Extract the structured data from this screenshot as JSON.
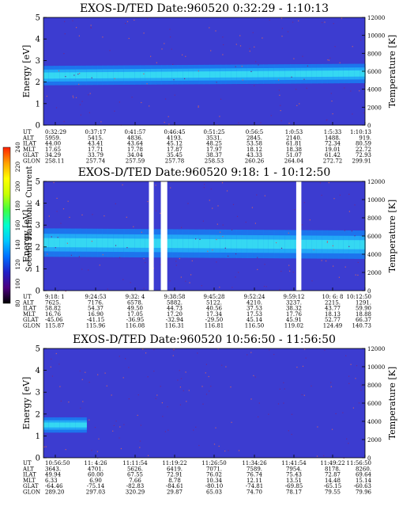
{
  "colorbar": {
    "label": "Second Harmonic Current",
    "ticks": [
      "80",
      "100",
      "120",
      "140",
      "160",
      "180",
      "200",
      "220",
      "240"
    ],
    "colors": [
      "#000000",
      "#4b0080",
      "#2020c8",
      "#0070ff",
      "#00c8ff",
      "#00ffd0",
      "#40ff40",
      "#c8ff00",
      "#ffff00",
      "#ffa000",
      "#ff2000"
    ]
  },
  "row_labels": [
    "UT",
    "ALT",
    "ILAT",
    "MLT",
    "GLAT",
    "GLON"
  ],
  "chart_data": [
    {
      "type": "heatmap",
      "title": "EXOS-D/TED  Date:960520  0:32:29 - 1:10:13",
      "ylabel": "Energy [eV]",
      "y2label": "Temperature [K]",
      "ylim": [
        0,
        5
      ],
      "y2lim": [
        0,
        12000
      ],
      "yticks": [
        "0",
        "1",
        "2",
        "3",
        "4",
        "5"
      ],
      "y2ticks": [
        "0",
        "2000",
        "4000",
        "6000",
        "8000",
        "10000",
        "12000"
      ],
      "band": {
        "center_ev": 2.3,
        "width_ev": 0.9,
        "center_end_ev": 2.4
      },
      "gaps": [],
      "table": [
        [
          "0:32:29",
          "0:37:17",
          "0:41:57",
          "0:46:45",
          "0:51:25",
          "0:56:5",
          "1:0:53",
          "1:5:33",
          "1:10:13"
        ],
        [
          "5959.",
          "5415.",
          "4836.",
          "4193.",
          "3531.",
          "2845.",
          "2140.",
          "1488.",
          "919."
        ],
        [
          "44.00",
          "43.41",
          "43.64",
          "45.12",
          "48.25",
          "53.58",
          "61.81",
          "72.34",
          "80.59"
        ],
        [
          "17.65",
          "17.71",
          "17.78",
          "17.87",
          "17.97",
          "18.12",
          "18.38",
          "19.01",
          "22.72"
        ],
        [
          "34.29",
          "33.79",
          "34.04",
          "35.45",
          "38.37",
          "43.33",
          "51.07",
          "61.42",
          "72.93"
        ],
        [
          "258.11",
          "257.74",
          "257.59",
          "257.78",
          "258.53",
          "260.26",
          "264.04",
          "272.72",
          "299.91"
        ]
      ]
    },
    {
      "type": "heatmap",
      "title": "EXOS-D/TED  Date:960520  9:18: 1 - 10:12:50",
      "ylabel": "Energy [eV]",
      "y2label": "Temperature [K]",
      "ylim": [
        0,
        5
      ],
      "y2lim": [
        0,
        12000
      ],
      "yticks": [
        "0",
        "1",
        "2",
        "3",
        "4",
        "5"
      ],
      "y2ticks": [
        "0",
        "2000",
        "4000",
        "6000",
        "8000",
        "10000",
        "12000"
      ],
      "band": {
        "center_ev": 2.2,
        "width_ev": 1.3,
        "center_end_ev": 2.1
      },
      "gaps": [
        [
          0.328,
          0.343
        ],
        [
          0.365,
          0.385
        ],
        [
          0.786,
          0.802
        ]
      ],
      "table": [
        [
          "9:18: 1",
          "9:24:53",
          "9:32: 4",
          "9:38:58",
          "9:45:28",
          "9:52:24",
          "9:59:12",
          "10: 6: 8",
          "10:12:50"
        ],
        [
          "7625.",
          "7176.",
          "6578.",
          "5882.",
          "5122.",
          "4210.",
          "3237.",
          "2215.",
          "1291."
        ],
        [
          "58.82",
          "54.37",
          "49.50",
          "44.73",
          "40.56",
          "37.53",
          "38.32",
          "43.77",
          "59.90"
        ],
        [
          "16.76",
          "16.90",
          "17.05",
          "17.20",
          "17.34",
          "17.53",
          "17.76",
          "18.13",
          "18.88"
        ],
        [
          "-45.06",
          "-41.15",
          "-36.95",
          "-32.94",
          "-29.50",
          "45.14",
          "45.91",
          "52.77",
          "66.37"
        ],
        [
          "115.87",
          "115.96",
          "116.08",
          "116.31",
          "116.81",
          "116.50",
          "119.02",
          "124.49",
          "140.73"
        ]
      ]
    },
    {
      "type": "heatmap",
      "title": "EXOS-D/TED  Date:960520  10:56:50 - 11:56:50",
      "ylabel": "Energy [eV]",
      "y2label": "Temperature [K]",
      "ylim": [
        0,
        5
      ],
      "y2lim": [
        0,
        12000
      ],
      "yticks": [
        "0",
        "1",
        "2",
        "3",
        "4",
        "5"
      ],
      "y2ticks": [
        "0",
        "2000",
        "4000",
        "6000",
        "8000",
        "10000",
        "12000"
      ],
      "band": {
        "center_ev": 1.5,
        "width_ev": 0.7,
        "fade_end_fraction": 0.12
      },
      "gaps": [],
      "table": [
        [
          "10:56:50",
          "11: 4:26",
          "11:11:54",
          "11:19:22",
          "11:26:50",
          "11:34:26",
          "11:41:54",
          "11:49:22",
          "11:56:50"
        ],
        [
          "3643.",
          "4701.",
          "5626.",
          "6419.",
          "7071.",
          "7589.",
          "7954.",
          "8178.",
          "8260."
        ],
        [
          "49.94",
          "60.00",
          "67.55",
          "72.91",
          "76.02",
          "76.74",
          "75.43",
          "72.87",
          "69.64"
        ],
        [
          "6.33",
          "6.90",
          "7.66",
          "8.78",
          "10.34",
          "12.11",
          "13.51",
          "14.48",
          "15.14"
        ],
        [
          "-64.46",
          "-75.14",
          "-82.83",
          "-84.61",
          "-80.10",
          "-74.81",
          "-69.85",
          "-65.15",
          "-60.63"
        ],
        [
          "289.20",
          "297.03",
          "320.29",
          "29.87",
          "65.03",
          "74.70",
          "78.17",
          "79.55",
          "79.96"
        ]
      ]
    }
  ]
}
